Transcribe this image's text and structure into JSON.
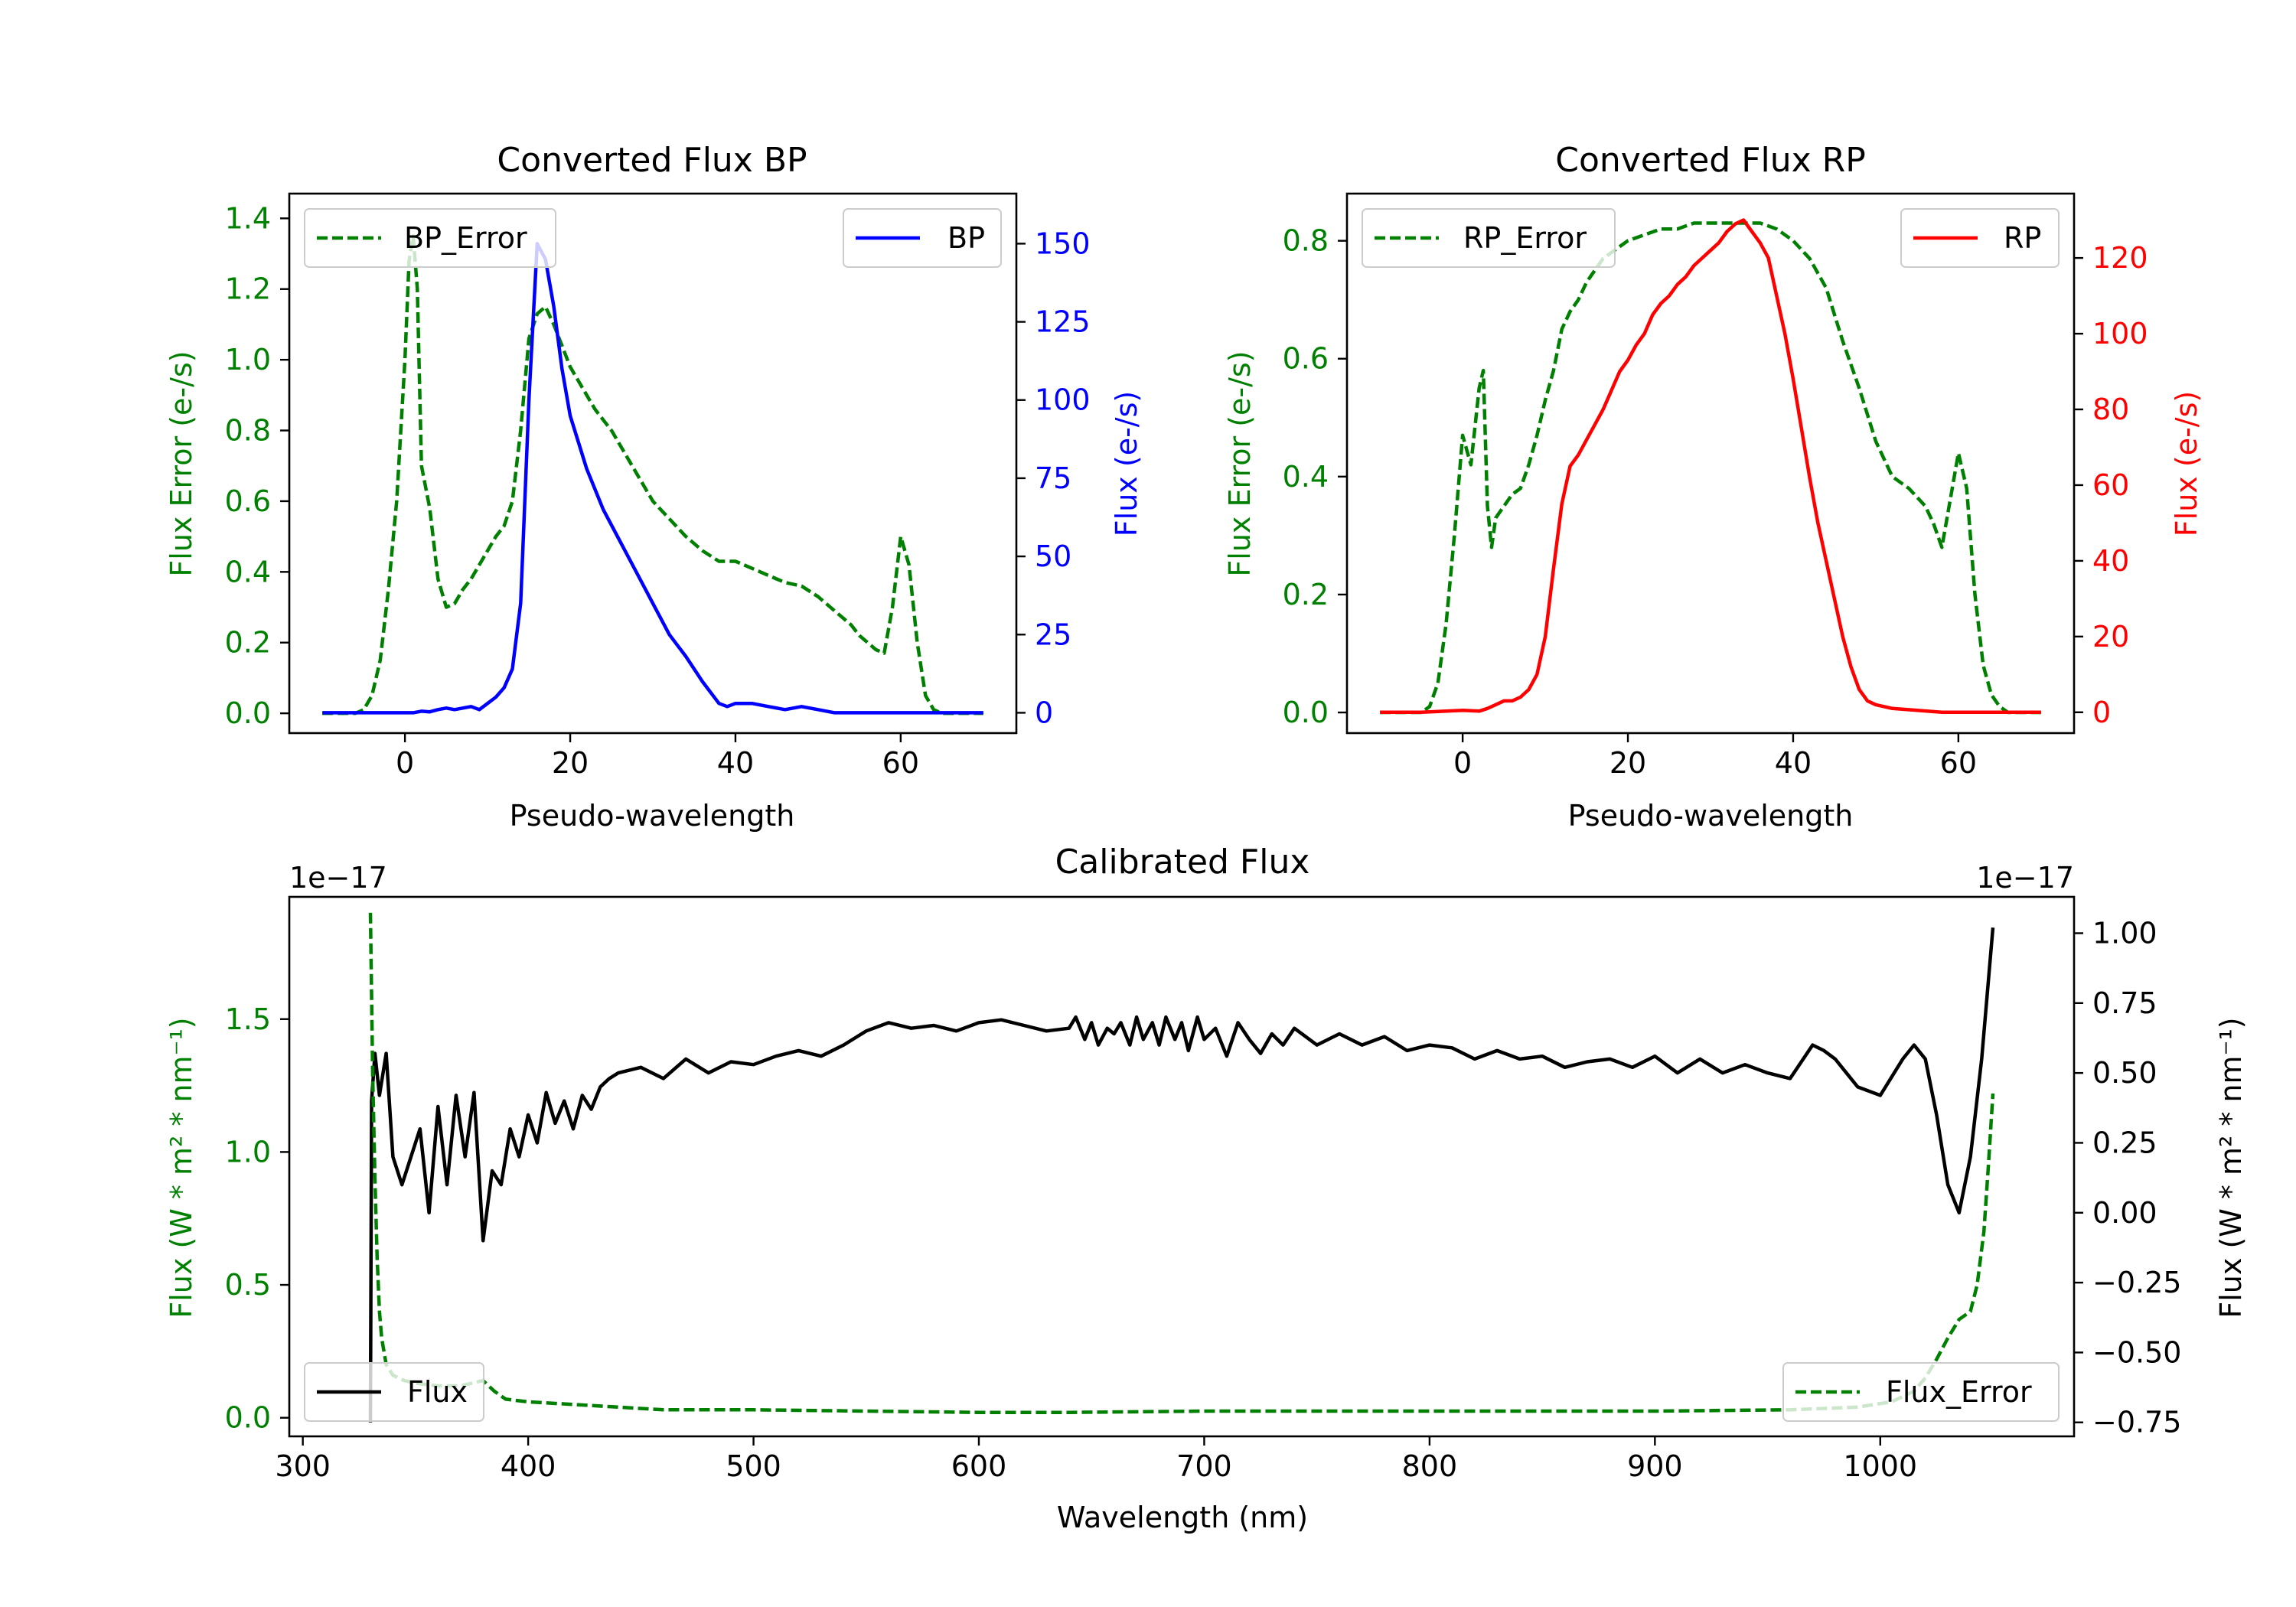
{
  "colors": {
    "green": "#008000",
    "blue": "#0000ff",
    "red": "#ff0000",
    "black": "#000000"
  },
  "chart_data": [
    {
      "id": "bp",
      "type": "line",
      "title": "Converted Flux BP",
      "xlabel": "Pseudo-wavelength",
      "ylabel_left": "Flux Error (e-/s)",
      "ylabel_right": "Flux (e-/s)",
      "xlim": [
        -14,
        74
      ],
      "ylim_left": [
        -0.056,
        1.47
      ],
      "ylim_right": [
        -6.5,
        166
      ],
      "xticks": [
        "0",
        "20",
        "40",
        "60"
      ],
      "yticks_left": [
        "0.0",
        "0.2",
        "0.4",
        "0.6",
        "0.8",
        "1.0",
        "1.2",
        "1.4"
      ],
      "yticks_right": [
        "0",
        "25",
        "50",
        "75",
        "100",
        "125",
        "150"
      ],
      "series": [
        {
          "name": "BP_Error",
          "axis": "left",
          "style": "dashed",
          "color": "#008000",
          "x": [
            -10,
            -6,
            -5,
            -4,
            -3,
            -2,
            -1,
            0,
            0.5,
            1,
            1.5,
            2,
            3,
            4,
            5,
            6,
            7,
            8,
            9,
            10,
            11,
            12,
            13,
            14,
            15,
            16,
            17,
            18,
            19,
            20,
            21,
            22,
            23,
            24,
            25,
            26,
            27,
            28,
            30,
            32,
            34,
            36,
            38,
            40,
            42,
            44,
            46,
            48,
            50,
            52,
            54,
            55,
            56,
            57,
            58,
            59,
            60,
            61,
            62,
            63,
            64,
            65,
            66,
            70
          ],
          "y": [
            0,
            0,
            0.01,
            0.05,
            0.15,
            0.35,
            0.6,
            1.0,
            1.28,
            1.35,
            1.2,
            0.7,
            0.58,
            0.38,
            0.3,
            0.31,
            0.35,
            0.38,
            0.42,
            0.46,
            0.5,
            0.53,
            0.6,
            0.8,
            1.06,
            1.13,
            1.15,
            1.1,
            1.04,
            0.98,
            0.94,
            0.9,
            0.86,
            0.83,
            0.8,
            0.76,
            0.72,
            0.68,
            0.6,
            0.55,
            0.5,
            0.46,
            0.43,
            0.43,
            0.41,
            0.39,
            0.37,
            0.36,
            0.33,
            0.29,
            0.25,
            0.22,
            0.2,
            0.18,
            0.17,
            0.3,
            0.5,
            0.42,
            0.2,
            0.05,
            0.01,
            0,
            0,
            0
          ]
        },
        {
          "name": "BP",
          "axis": "right",
          "style": "solid",
          "color": "#0000ff",
          "x": [
            -10,
            -5,
            0,
            1,
            2,
            3,
            4,
            5,
            6,
            7,
            8,
            9,
            10,
            11,
            12,
            13,
            14,
            15,
            16,
            17,
            18,
            19,
            20,
            22,
            24,
            26,
            28,
            30,
            32,
            34,
            36,
            38,
            39,
            40,
            42,
            44,
            46,
            48,
            50,
            52,
            55,
            60,
            65,
            70
          ],
          "y": [
            0,
            0,
            0,
            0,
            0.5,
            0.3,
            1,
            1.5,
            1,
            1.5,
            2,
            1,
            3,
            5,
            8,
            14,
            35,
            100,
            150,
            145,
            130,
            110,
            95,
            78,
            65,
            55,
            45,
            35,
            25,
            18,
            10,
            3,
            2,
            3,
            3,
            2,
            1,
            2,
            1,
            0,
            0,
            0,
            0,
            0
          ]
        }
      ],
      "legend": [
        {
          "label": "BP_Error",
          "position": "top-left"
        },
        {
          "label": "BP",
          "position": "top-right"
        }
      ]
    },
    {
      "id": "rp",
      "type": "line",
      "title": "Converted Flux RP",
      "xlabel": "Pseudo-wavelength",
      "ylabel_left": "Flux Error (e-/s)",
      "ylabel_right": "Flux (e-/s)",
      "xlim": [
        -14,
        74
      ],
      "ylim_left": [
        -0.035,
        0.88
      ],
      "ylim_right": [
        -5.5,
        137
      ],
      "xticks": [
        "0",
        "20",
        "40",
        "60"
      ],
      "yticks_left": [
        "0.0",
        "0.2",
        "0.4",
        "0.6",
        "0.8"
      ],
      "yticks_right": [
        "0",
        "20",
        "40",
        "60",
        "80",
        "100",
        "120"
      ],
      "series": [
        {
          "name": "RP_Error",
          "axis": "left",
          "style": "dashed",
          "color": "#008000",
          "x": [
            -10,
            -5,
            -4,
            -3,
            -2,
            -1,
            0,
            1,
            2,
            2.5,
            3,
            3.5,
            4,
            5,
            6,
            7,
            8,
            9,
            10,
            11,
            12,
            13,
            14,
            15,
            16,
            17,
            18,
            20,
            22,
            24,
            26,
            28,
            30,
            32,
            34,
            36,
            38,
            40,
            42,
            44,
            46,
            48,
            50,
            52,
            54,
            56,
            57,
            58,
            59,
            60,
            61,
            62,
            63,
            64,
            65,
            66,
            70
          ],
          "y": [
            0,
            0,
            0.01,
            0.05,
            0.15,
            0.3,
            0.47,
            0.42,
            0.55,
            0.58,
            0.35,
            0.28,
            0.33,
            0.35,
            0.37,
            0.38,
            0.42,
            0.47,
            0.53,
            0.58,
            0.65,
            0.68,
            0.7,
            0.73,
            0.75,
            0.77,
            0.78,
            0.8,
            0.81,
            0.82,
            0.82,
            0.83,
            0.83,
            0.83,
            0.83,
            0.83,
            0.82,
            0.8,
            0.77,
            0.72,
            0.63,
            0.55,
            0.46,
            0.4,
            0.38,
            0.35,
            0.32,
            0.28,
            0.36,
            0.44,
            0.38,
            0.2,
            0.08,
            0.03,
            0.01,
            0,
            0
          ]
        },
        {
          "name": "RP",
          "axis": "right",
          "style": "solid",
          "color": "#ff0000",
          "x": [
            -10,
            -5,
            0,
            2,
            3,
            4,
            5,
            6,
            7,
            8,
            9,
            10,
            11,
            12,
            13,
            14,
            15,
            16,
            17,
            18,
            19,
            20,
            21,
            22,
            23,
            24,
            25,
            26,
            27,
            28,
            29,
            30,
            31,
            32,
            33,
            34,
            35,
            36,
            37,
            38,
            39,
            40,
            41,
            42,
            43,
            44,
            45,
            46,
            47,
            48,
            49,
            50,
            52,
            55,
            58,
            60,
            65,
            70
          ],
          "y": [
            0,
            0,
            0.5,
            0.3,
            1,
            2,
            3,
            3,
            4,
            6,
            10,
            20,
            38,
            55,
            65,
            68,
            72,
            76,
            80,
            85,
            90,
            93,
            97,
            100,
            105,
            108,
            110,
            113,
            115,
            118,
            120,
            122,
            124,
            127,
            129,
            130,
            127,
            124,
            120,
            110,
            100,
            88,
            75,
            62,
            50,
            40,
            30,
            20,
            12,
            6,
            3,
            2,
            1,
            0.5,
            0,
            0,
            0,
            0
          ]
        }
      ],
      "legend": [
        {
          "label": "RP_Error",
          "position": "top-left"
        },
        {
          "label": "RP",
          "position": "top-right"
        }
      ]
    },
    {
      "id": "cal",
      "type": "line",
      "title": "Calibrated Flux",
      "xlabel": "Wavelength (nm)",
      "ylabel_left": "Flux (W * m² * nm⁻¹)",
      "ylabel_right": "Flux (W * m² * nm⁻¹)",
      "offset_left": "1e−17",
      "offset_right": "1e−17",
      "xlim": [
        294,
        1086
      ],
      "ylim_left": [
        -0.07,
        1.96
      ],
      "ylim_right": [
        -0.8,
        1.13
      ],
      "xticks": [
        "300",
        "400",
        "500",
        "600",
        "700",
        "800",
        "900",
        "1000"
      ],
      "yticks_left": [
        "0.0",
        "0.5",
        "1.0",
        "1.5"
      ],
      "yticks_right": [
        "−0.75",
        "−0.50",
        "−0.25",
        "0.00",
        "0.25",
        "0.50",
        "0.75",
        "1.00"
      ],
      "series": [
        {
          "name": "Flux",
          "axis": "right",
          "style": "solid",
          "color": "#000000",
          "x": [
            330,
            330.5,
            332,
            334,
            337,
            340,
            344,
            348,
            352,
            356,
            360,
            364,
            368,
            372,
            376,
            380,
            384,
            388,
            392,
            396,
            400,
            404,
            408,
            412,
            416,
            420,
            424,
            428,
            432,
            436,
            440,
            450,
            460,
            470,
            480,
            490,
            500,
            510,
            520,
            530,
            540,
            550,
            560,
            570,
            580,
            590,
            600,
            610,
            620,
            630,
            640,
            643,
            647,
            650,
            653,
            657,
            660,
            663,
            667,
            670,
            673,
            677,
            680,
            683,
            687,
            690,
            693,
            697,
            700,
            705,
            710,
            715,
            720,
            725,
            730,
            735,
            740,
            745,
            750,
            760,
            770,
            780,
            790,
            800,
            810,
            820,
            830,
            840,
            850,
            860,
            870,
            880,
            890,
            900,
            910,
            920,
            930,
            940,
            950,
            960,
            970,
            975,
            980,
            990,
            1000,
            1010,
            1015,
            1020,
            1025,
            1030,
            1035,
            1040,
            1045,
            1050
          ],
          "y": [
            -0.75,
            0.4,
            0.57,
            0.42,
            0.57,
            0.2,
            0.1,
            0.2,
            0.3,
            0.0,
            0.38,
            0.1,
            0.42,
            0.2,
            0.43,
            -0.1,
            0.15,
            0.1,
            0.3,
            0.2,
            0.35,
            0.25,
            0.43,
            0.32,
            0.4,
            0.3,
            0.42,
            0.37,
            0.45,
            0.48,
            0.5,
            0.52,
            0.48,
            0.55,
            0.5,
            0.54,
            0.53,
            0.56,
            0.58,
            0.56,
            0.6,
            0.65,
            0.68,
            0.66,
            0.67,
            0.65,
            0.68,
            0.69,
            0.67,
            0.65,
            0.66,
            0.7,
            0.62,
            0.68,
            0.6,
            0.66,
            0.64,
            0.68,
            0.6,
            0.7,
            0.62,
            0.68,
            0.6,
            0.7,
            0.62,
            0.68,
            0.58,
            0.7,
            0.62,
            0.66,
            0.56,
            0.68,
            0.62,
            0.57,
            0.64,
            0.6,
            0.66,
            0.63,
            0.6,
            0.64,
            0.6,
            0.63,
            0.58,
            0.6,
            0.59,
            0.55,
            0.58,
            0.55,
            0.56,
            0.52,
            0.54,
            0.55,
            0.52,
            0.56,
            0.5,
            0.55,
            0.5,
            0.53,
            0.5,
            0.48,
            0.6,
            0.58,
            0.55,
            0.45,
            0.42,
            0.55,
            0.6,
            0.55,
            0.35,
            0.1,
            0.0,
            0.2,
            0.55,
            1.02
          ]
        },
        {
          "name": "Flux_Error",
          "axis": "left",
          "style": "dashed",
          "color": "#008000",
          "x": [
            330,
            331,
            332,
            333,
            334,
            335,
            337,
            340,
            345,
            350,
            360,
            370,
            380,
            385,
            390,
            400,
            420,
            440,
            460,
            500,
            550,
            600,
            640,
            700,
            800,
            900,
            960,
            990,
            1005,
            1015,
            1020,
            1025,
            1030,
            1035,
            1040,
            1043,
            1046,
            1048,
            1050
          ],
          "y": [
            1.9,
            1.3,
            0.9,
            0.6,
            0.4,
            0.3,
            0.2,
            0.16,
            0.14,
            0.13,
            0.12,
            0.12,
            0.14,
            0.1,
            0.07,
            0.06,
            0.05,
            0.04,
            0.03,
            0.03,
            0.025,
            0.02,
            0.02,
            0.025,
            0.025,
            0.025,
            0.03,
            0.04,
            0.06,
            0.1,
            0.15,
            0.22,
            0.3,
            0.37,
            0.4,
            0.5,
            0.7,
            0.95,
            1.22
          ]
        }
      ],
      "legend": [
        {
          "label": "Flux",
          "position": "bottom-left"
        },
        {
          "label": "Flux_Error",
          "position": "bottom-right"
        }
      ]
    }
  ]
}
